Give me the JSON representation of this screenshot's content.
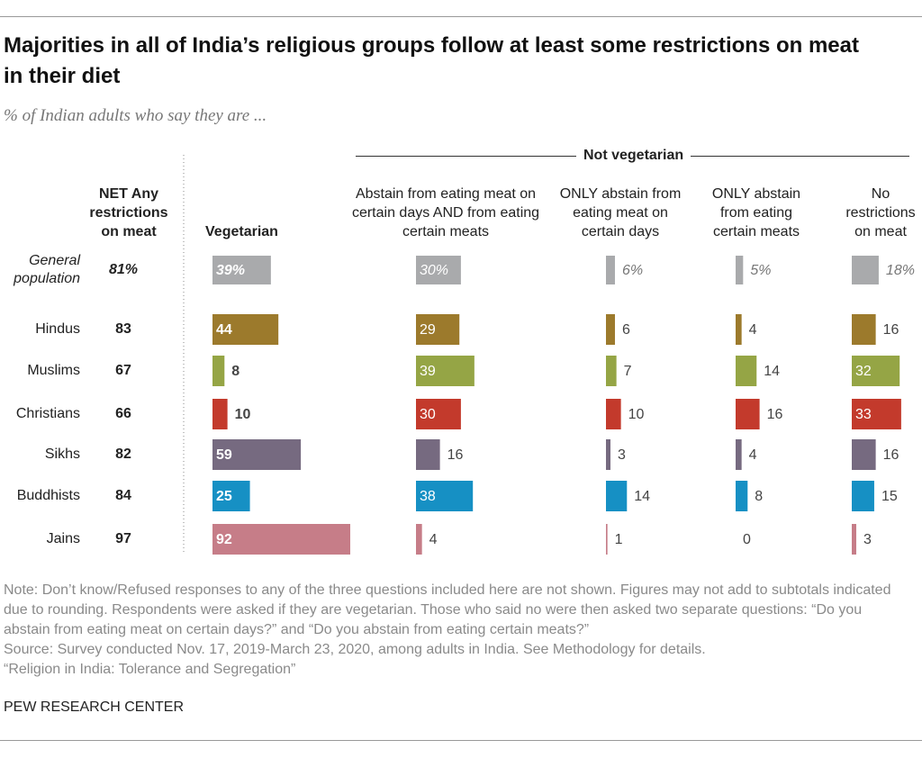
{
  "chart_data": {
    "type": "bar",
    "title": "Majorities in all of India’s religious groups follow at least some restrictions on meat in their diet",
    "subtitle": "% of Indian adults who say they are ...",
    "group_label": "Not vegetarian",
    "categories": [
      "General population",
      "Hindus",
      "Muslims",
      "Christians",
      "Sikhs",
      "Buddhists",
      "Jains"
    ],
    "row_colors": [
      "#a9aaac",
      "#9c7a2c",
      "#95a545",
      "#c33a2c",
      "#766a80",
      "#1690c4",
      "#c67d88"
    ],
    "net": {
      "name": "NET Any restrictions on meat",
      "values": [
        81,
        83,
        67,
        66,
        82,
        84,
        97
      ],
      "value_labels": [
        "81%",
        "83",
        "67",
        "66",
        "82",
        "84",
        "97"
      ]
    },
    "series": [
      {
        "name": "Vegetarian",
        "values": [
          39,
          44,
          8,
          10,
          59,
          25,
          92
        ],
        "value_labels": [
          "39%",
          "44",
          "8",
          "10",
          "59",
          "25",
          "92"
        ]
      },
      {
        "name": "Abstain from eating meat on certain days AND from eating certain meats",
        "values": [
          30,
          29,
          39,
          30,
          16,
          38,
          4
        ],
        "value_labels": [
          "30%",
          "29",
          "39",
          "30",
          "16",
          "38",
          "4"
        ]
      },
      {
        "name": "ONLY abstain from eating meat on certain days",
        "values": [
          6,
          6,
          7,
          10,
          3,
          14,
          1
        ],
        "value_labels": [
          "6%",
          "6",
          "7",
          "10",
          "3",
          "14",
          "1"
        ]
      },
      {
        "name": "ONLY abstain from eating certain meats",
        "values": [
          5,
          4,
          14,
          16,
          4,
          8,
          0
        ],
        "value_labels": [
          "5%",
          "4",
          "14",
          "16",
          "4",
          "8",
          "0"
        ]
      },
      {
        "name": "No restrictions on meat",
        "values": [
          18,
          16,
          32,
          33,
          16,
          15,
          3
        ],
        "value_labels": [
          "18%",
          "16",
          "32",
          "33",
          "16",
          "15",
          "3"
        ]
      }
    ],
    "note": "Note: Don’t know/Refused responses to any of the three questions included here are not shown. Figures may not add to subtotals indicated due to rounding. Respondents were asked if they are vegetarian. Those who said no were then asked two separate questions: “Do you abstain from eating meat on certain days?” and “Do you abstain from eating certain meats?”",
    "source": "Source: Survey conducted Nov. 17, 2019-March 23, 2020, among adults in India. See Methodology for details.",
    "report": "“Religion in India: Tolerance and Segregation”",
    "credit": "PEW RESEARCH CENTER"
  }
}
